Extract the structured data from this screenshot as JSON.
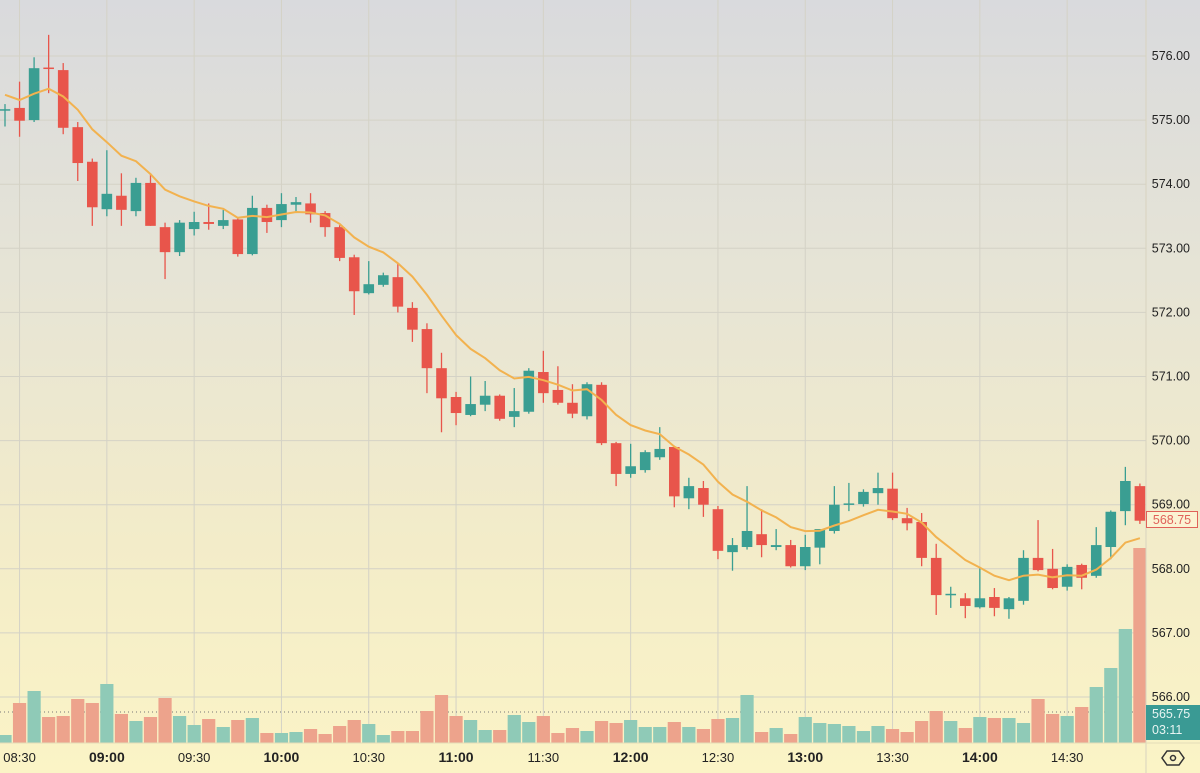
{
  "chart_data": {
    "type": "candlestick",
    "interval": "5m",
    "title": "",
    "y_ticks": [
      "576.00",
      "575.00",
      "574.00",
      "573.00",
      "572.00",
      "571.00",
      "570.00",
      "569.00",
      "568.00",
      "567.00",
      "566.00"
    ],
    "y_range": [
      565.5,
      576.4
    ],
    "x_ticks": [
      {
        "label": "08:30",
        "index": 1,
        "bold": false
      },
      {
        "label": "09:00",
        "index": 7,
        "bold": true
      },
      {
        "label": "09:30",
        "index": 13,
        "bold": false
      },
      {
        "label": "10:00",
        "index": 19,
        "bold": true
      },
      {
        "label": "10:30",
        "index": 25,
        "bold": false
      },
      {
        "label": "11:00",
        "index": 31,
        "bold": true
      },
      {
        "label": "11:30",
        "index": 37,
        "bold": false
      },
      {
        "label": "12:00",
        "index": 43,
        "bold": true
      },
      {
        "label": "12:30",
        "index": 49,
        "bold": false
      },
      {
        "label": "13:00",
        "index": 55,
        "bold": true
      },
      {
        "label": "13:30",
        "index": 61,
        "bold": false
      },
      {
        "label": "14:00",
        "index": 67,
        "bold": true
      },
      {
        "label": "14:30",
        "index": 73,
        "bold": false
      }
    ],
    "ohlc": [
      [
        575.17,
        575.25,
        574.9,
        575.17
      ],
      [
        575.19,
        575.6,
        574.74,
        574.99
      ],
      [
        575.0,
        575.98,
        574.97,
        575.81
      ],
      [
        575.82,
        576.33,
        575.42,
        575.8
      ],
      [
        575.78,
        575.89,
        574.78,
        574.88
      ],
      [
        574.89,
        574.97,
        574.05,
        574.33
      ],
      [
        574.35,
        574.4,
        573.35,
        573.64
      ],
      [
        573.61,
        574.53,
        573.5,
        573.85
      ],
      [
        573.82,
        574.17,
        573.35,
        573.6
      ],
      [
        573.58,
        574.1,
        573.5,
        574.02
      ],
      [
        574.02,
        574.17,
        573.35,
        573.35
      ],
      [
        573.33,
        573.4,
        572.52,
        572.94
      ],
      [
        572.94,
        573.44,
        572.88,
        573.4
      ],
      [
        573.3,
        573.57,
        573.2,
        573.41
      ],
      [
        573.41,
        573.7,
        573.29,
        573.38
      ],
      [
        573.35,
        573.6,
        573.3,
        573.44
      ],
      [
        573.45,
        573.47,
        572.87,
        572.91
      ],
      [
        572.91,
        573.82,
        572.89,
        573.63
      ],
      [
        573.63,
        573.68,
        573.24,
        573.41
      ],
      [
        573.44,
        573.86,
        573.33,
        573.69
      ],
      [
        573.68,
        573.8,
        573.55,
        573.72
      ],
      [
        573.7,
        573.86,
        573.4,
        573.53
      ],
      [
        573.55,
        573.58,
        573.18,
        573.33
      ],
      [
        573.33,
        573.36,
        572.8,
        572.85
      ],
      [
        572.86,
        572.9,
        571.96,
        572.33
      ],
      [
        572.3,
        572.8,
        572.28,
        572.44
      ],
      [
        572.43,
        572.62,
        572.4,
        572.58
      ],
      [
        572.55,
        572.76,
        572.0,
        572.09
      ],
      [
        572.07,
        572.16,
        571.54,
        571.73
      ],
      [
        571.74,
        571.83,
        570.74,
        571.13
      ],
      [
        571.13,
        571.37,
        570.13,
        570.66
      ],
      [
        570.68,
        570.76,
        570.24,
        570.43
      ],
      [
        570.4,
        571.0,
        570.38,
        570.57
      ],
      [
        570.56,
        570.93,
        570.46,
        570.7
      ],
      [
        570.7,
        570.72,
        570.31,
        570.34
      ],
      [
        570.37,
        570.82,
        570.21,
        570.46
      ],
      [
        570.45,
        571.13,
        570.42,
        571.09
      ],
      [
        571.07,
        571.4,
        570.59,
        570.74
      ],
      [
        570.79,
        571.16,
        570.56,
        570.59
      ],
      [
        570.59,
        570.88,
        570.35,
        570.42
      ],
      [
        570.38,
        570.91,
        570.33,
        570.88
      ],
      [
        570.87,
        570.91,
        569.93,
        569.96
      ],
      [
        569.96,
        569.98,
        569.29,
        569.48
      ],
      [
        569.48,
        569.95,
        569.42,
        569.6
      ],
      [
        569.54,
        569.85,
        569.5,
        569.82
      ],
      [
        569.74,
        570.21,
        569.7,
        569.87
      ],
      [
        569.9,
        569.92,
        568.96,
        569.13
      ],
      [
        569.1,
        569.42,
        568.93,
        569.29
      ],
      [
        569.26,
        569.37,
        568.81,
        569.0
      ],
      [
        568.93,
        568.98,
        568.15,
        568.28
      ],
      [
        568.26,
        568.48,
        567.97,
        568.37
      ],
      [
        568.34,
        569.29,
        568.3,
        568.59
      ],
      [
        568.54,
        568.93,
        568.18,
        568.37
      ],
      [
        568.34,
        568.62,
        568.29,
        568.37
      ],
      [
        568.37,
        568.45,
        568.02,
        568.04
      ],
      [
        568.04,
        568.53,
        567.98,
        568.34
      ],
      [
        568.33,
        568.62,
        568.07,
        568.62
      ],
      [
        568.59,
        569.29,
        568.55,
        569.0
      ],
      [
        569.0,
        569.34,
        568.9,
        569.02
      ],
      [
        569.01,
        569.24,
        568.97,
        569.2
      ],
      [
        569.18,
        569.5,
        569.0,
        569.26
      ],
      [
        569.25,
        569.5,
        568.76,
        568.79
      ],
      [
        568.79,
        568.95,
        568.6,
        568.71
      ],
      [
        568.73,
        568.87,
        568.04,
        568.17
      ],
      [
        568.17,
        568.39,
        567.28,
        567.59
      ],
      [
        567.59,
        567.72,
        567.39,
        567.61
      ],
      [
        567.54,
        567.62,
        567.23,
        567.42
      ],
      [
        567.4,
        568.03,
        567.38,
        567.54
      ],
      [
        567.56,
        567.7,
        567.26,
        567.39
      ],
      [
        567.37,
        567.56,
        567.22,
        567.54
      ],
      [
        567.5,
        568.29,
        567.44,
        568.17
      ],
      [
        568.17,
        568.76,
        567.96,
        567.98
      ],
      [
        568.0,
        568.31,
        567.68,
        567.7
      ],
      [
        567.72,
        568.07,
        567.66,
        568.03
      ],
      [
        568.06,
        568.08,
        567.68,
        567.86
      ],
      [
        567.89,
        568.65,
        567.86,
        568.37
      ],
      [
        568.34,
        568.91,
        568.15,
        568.89
      ],
      [
        568.9,
        569.59,
        568.68,
        569.37
      ],
      [
        569.29,
        569.33,
        568.7,
        568.75
      ]
    ],
    "volume": [
      8,
      40,
      52,
      26,
      27,
      44,
      40,
      59,
      29,
      22,
      26,
      45,
      27,
      18,
      24,
      16,
      23,
      25,
      10,
      10,
      11,
      14,
      9,
      17,
      23,
      19,
      8,
      12,
      12,
      32,
      48,
      27,
      23,
      13,
      13,
      28,
      21,
      27,
      10,
      15,
      12,
      22,
      20,
      23,
      16,
      16,
      21,
      16,
      14,
      24,
      25,
      48,
      11,
      15,
      9,
      26,
      20,
      19,
      17,
      12,
      17,
      14,
      11,
      22,
      32,
      22,
      15,
      26,
      25,
      25,
      20,
      44,
      29,
      27,
      36,
      56,
      75,
      114,
      195
    ],
    "ma": {
      "type": "EMA",
      "period": 9,
      "seed": 575.45
    },
    "last_price_label": "568.75",
    "volume_label": "565.75",
    "countdown": "03:11"
  },
  "colors": {
    "up": "#3a9e92",
    "down": "#e8554b",
    "vol_up": "#8fcab7",
    "vol_down": "#eda38c",
    "ma": "#f2b24f",
    "grid": "#d4d2c6"
  },
  "icons": {
    "settings": "settings-hexagon-icon"
  }
}
